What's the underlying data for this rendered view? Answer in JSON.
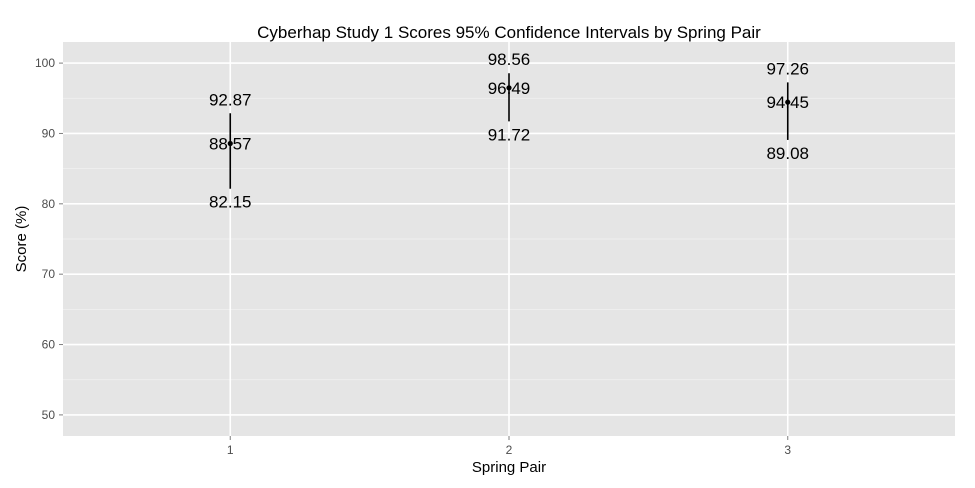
{
  "chart_data": {
    "type": "errorbar",
    "title": "Cyberhap Study 1 Scores 95% Confidence Intervals by Spring Pair",
    "xlabel": "Spring Pair",
    "ylabel": "Score (%)",
    "categories": [
      "1",
      "2",
      "3"
    ],
    "yticks": [
      "50",
      "60",
      "70",
      "80",
      "90",
      "100"
    ],
    "ylim": [
      47,
      103
    ],
    "grid": true,
    "series": [
      {
        "points": [
          {
            "x": "1",
            "mean": 88.57,
            "lower": 82.15,
            "upper": 92.87,
            "mean_label": "88.57",
            "lower_label": "82.15",
            "upper_label": "92.87"
          },
          {
            "x": "2",
            "mean": 96.49,
            "lower": 91.72,
            "upper": 98.56,
            "mean_label": "96.49",
            "lower_label": "91.72",
            "upper_label": "98.56"
          },
          {
            "x": "3",
            "mean": 94.45,
            "lower": 89.08,
            "upper": 97.26,
            "mean_label": "94.45",
            "lower_label": "89.08",
            "upper_label": "97.26"
          }
        ]
      }
    ],
    "colors": {
      "panel": "#e5e5e5",
      "grid": "#ffffff",
      "mark": "#000000",
      "tick_text": "#4d4d4d"
    }
  }
}
